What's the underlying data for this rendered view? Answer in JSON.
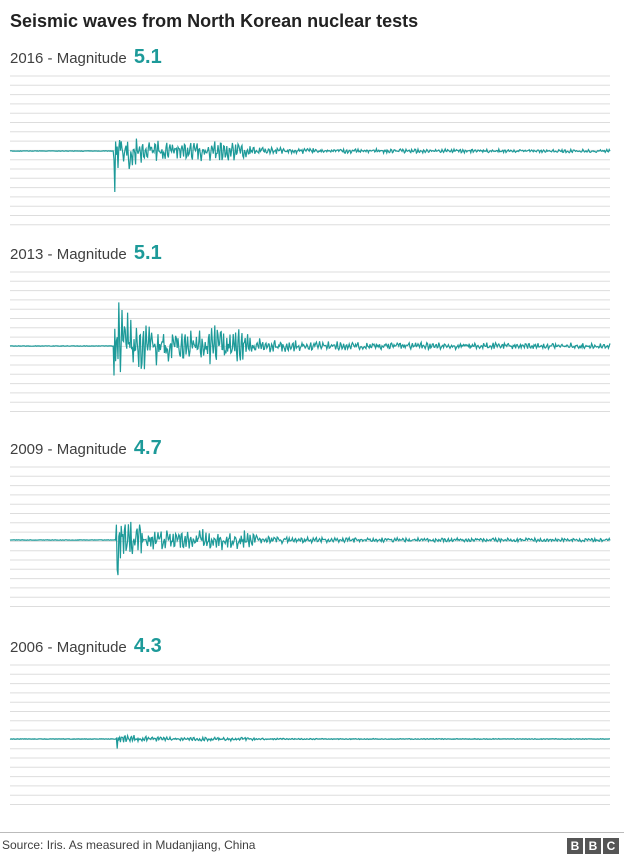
{
  "title": "Seismic waves from North Korean nuclear tests",
  "colors": {
    "wave": "#1d9a99",
    "grid": "#dddddd",
    "magnitude": "#1d9a99"
  },
  "chart_data": [
    {
      "type": "line",
      "year": "2016",
      "prefix": " - Magnitude ",
      "magnitude": "5.1",
      "onset": 0.172,
      "amp": 1.0,
      "grid": "on"
    },
    {
      "type": "line",
      "year": "2013",
      "prefix": " - Magnitude ",
      "magnitude": "5.1",
      "onset": 0.172,
      "amp": 1.85,
      "grid": "on"
    },
    {
      "type": "line",
      "year": "2009",
      "prefix": " - Magnitude ",
      "magnitude": "4.7",
      "onset": 0.176,
      "amp": 1.05,
      "grid": "on"
    },
    {
      "type": "line",
      "year": "2006",
      "prefix": " - Magnitude ",
      "magnitude": "4.3",
      "onset": 0.176,
      "amp": 0.22,
      "grid": "on"
    }
  ],
  "footer": {
    "source": "Source: Iris. As measured in Mudanjiang, China",
    "logo": [
      "B",
      "B",
      "C"
    ]
  }
}
